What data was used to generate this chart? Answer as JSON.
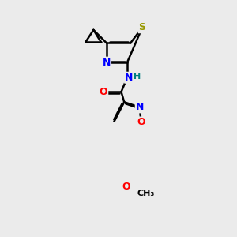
{
  "background_color": "#ebebeb",
  "bond_color": "#000000",
  "bond_width": 1.8,
  "atom_colors": {
    "S": "#999900",
    "N": "#0000ff",
    "O": "#ff0000",
    "C": "#000000",
    "H": "#008080"
  },
  "font_size": 9,
  "figsize": [
    3.0,
    3.0
  ],
  "dpi": 100
}
